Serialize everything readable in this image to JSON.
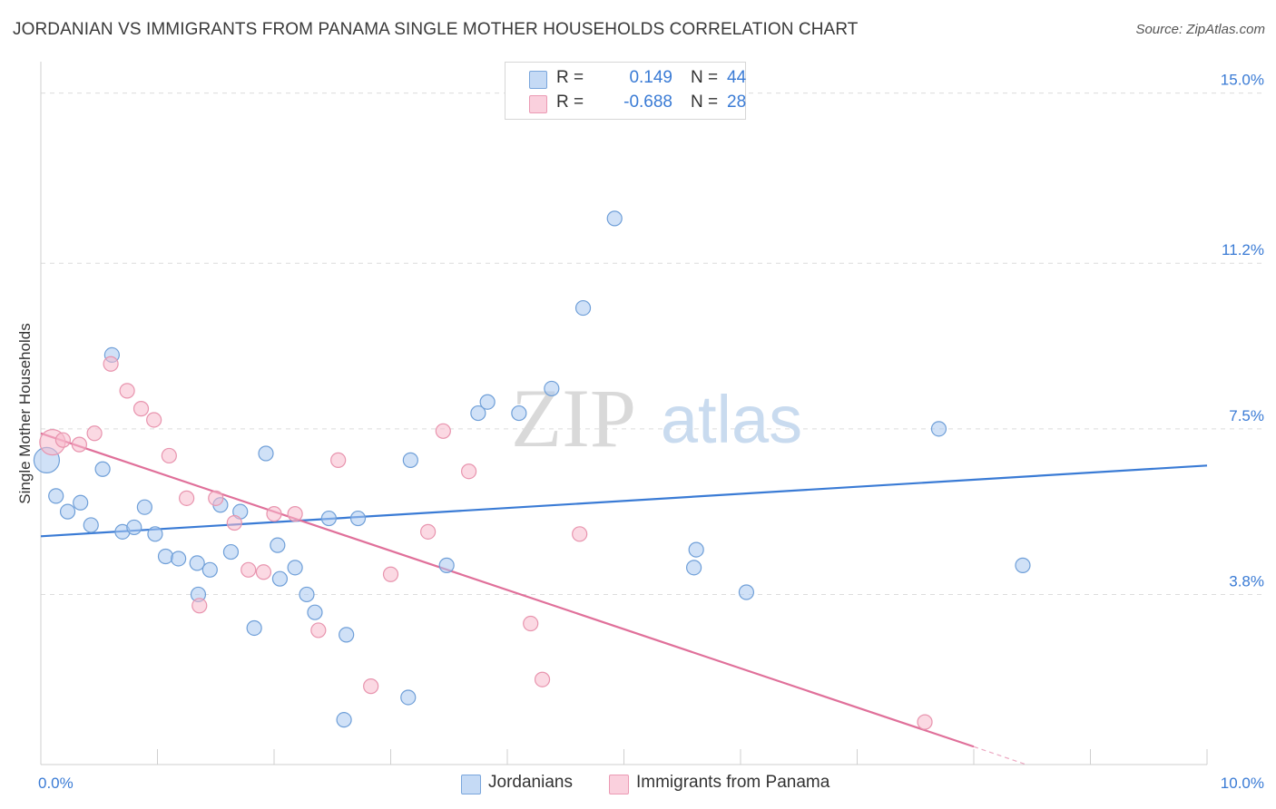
{
  "title": "JORDANIAN VS IMMIGRANTS FROM PANAMA SINGLE MOTHER HOUSEHOLDS CORRELATION CHART",
  "source": "Source: ZipAtlas.com",
  "watermark": {
    "zip": "ZIP",
    "atlas": "atlas"
  },
  "legend": {
    "rows": [
      {
        "r_label": "R =",
        "r_value": "0.149",
        "n_label": "N =",
        "n_value": "44",
        "color": "#a9c8f0"
      },
      {
        "r_label": "R =",
        "r_value": "-0.688",
        "n_label": "N =",
        "n_value": "28",
        "color": "#f7b9cc"
      }
    ]
  },
  "bottom_legend": [
    {
      "label": "Jordanians",
      "color": "#a9c8f0"
    },
    {
      "label": "Immigrants from Panama",
      "color": "#f7b9cc"
    }
  ],
  "chart_data": {
    "type": "scatter",
    "title": "JORDANIAN VS IMMIGRANTS FROM PANAMA SINGLE MOTHER HOUSEHOLDS CORRELATION CHART",
    "xlabel": "",
    "ylabel": "Single Mother Households",
    "xlim": [
      0,
      10
    ],
    "ylim": [
      0,
      15.5
    ],
    "x_tick_labels": [
      {
        "value": 0,
        "label": "0.0%"
      },
      {
        "value": 10,
        "label": "10.0%"
      }
    ],
    "y_tick_labels": [
      {
        "value": 3.8,
        "label": "3.8%"
      },
      {
        "value": 7.5,
        "label": "7.5%"
      },
      {
        "value": 11.2,
        "label": "11.2%"
      },
      {
        "value": 15.0,
        "label": "15.0%"
      }
    ],
    "series": [
      {
        "name": "Jordanians",
        "color": "#a9c8f0",
        "stroke": "#6f9fd8",
        "line_color": "#3a7bd5",
        "trend": {
          "x0": 0,
          "y0": 5.1,
          "x1": 10,
          "y1": 6.68
        },
        "points": [
          {
            "x": 0.05,
            "y": 6.8,
            "big": true
          },
          {
            "x": 0.13,
            "y": 6.0
          },
          {
            "x": 0.23,
            "y": 5.65
          },
          {
            "x": 0.34,
            "y": 5.85
          },
          {
            "x": 0.43,
            "y": 5.35
          },
          {
            "x": 0.53,
            "y": 6.6
          },
          {
            "x": 0.61,
            "y": 9.15
          },
          {
            "x": 0.7,
            "y": 5.2
          },
          {
            "x": 0.8,
            "y": 5.3
          },
          {
            "x": 0.89,
            "y": 5.75
          },
          {
            "x": 0.98,
            "y": 5.15
          },
          {
            "x": 1.07,
            "y": 4.65
          },
          {
            "x": 1.18,
            "y": 4.6
          },
          {
            "x": 1.35,
            "y": 3.8
          },
          {
            "x": 1.34,
            "y": 4.5
          },
          {
            "x": 1.45,
            "y": 4.35
          },
          {
            "x": 1.54,
            "y": 5.8
          },
          {
            "x": 1.63,
            "y": 4.75
          },
          {
            "x": 1.71,
            "y": 5.65
          },
          {
            "x": 1.83,
            "y": 3.05
          },
          {
            "x": 1.93,
            "y": 6.95
          },
          {
            "x": 2.03,
            "y": 4.9
          },
          {
            "x": 2.05,
            "y": 4.15
          },
          {
            "x": 2.18,
            "y": 4.4
          },
          {
            "x": 2.28,
            "y": 3.8
          },
          {
            "x": 2.35,
            "y": 3.4
          },
          {
            "x": 2.47,
            "y": 5.5
          },
          {
            "x": 2.6,
            "y": 1.0
          },
          {
            "x": 2.62,
            "y": 2.9
          },
          {
            "x": 2.72,
            "y": 5.5
          },
          {
            "x": 3.15,
            "y": 1.5
          },
          {
            "x": 3.17,
            "y": 6.8
          },
          {
            "x": 3.48,
            "y": 4.45
          },
          {
            "x": 3.75,
            "y": 7.85
          },
          {
            "x": 3.83,
            "y": 8.1
          },
          {
            "x": 4.1,
            "y": 7.85
          },
          {
            "x": 4.38,
            "y": 8.4
          },
          {
            "x": 4.65,
            "y": 10.2
          },
          {
            "x": 4.92,
            "y": 12.2
          },
          {
            "x": 5.6,
            "y": 4.4
          },
          {
            "x": 5.62,
            "y": 4.8
          },
          {
            "x": 6.05,
            "y": 3.85
          },
          {
            "x": 7.7,
            "y": 7.5
          },
          {
            "x": 8.42,
            "y": 4.45
          }
        ]
      },
      {
        "name": "Immigrants from Panama",
        "color": "#f7b9cc",
        "stroke": "#e894ae",
        "line_color": "#e0709a",
        "trend": {
          "x0": 0,
          "y0": 7.4,
          "x1": 8.0,
          "y1": 0.4
        },
        "trend_dash": {
          "x0": 8.0,
          "y0": 0.4,
          "x1": 8.45,
          "y1": 0.0
        },
        "points": [
          {
            "x": 0.1,
            "y": 7.2,
            "big": true
          },
          {
            "x": 0.19,
            "y": 7.25
          },
          {
            "x": 0.33,
            "y": 7.15
          },
          {
            "x": 0.46,
            "y": 7.4
          },
          {
            "x": 0.6,
            "y": 8.95
          },
          {
            "x": 0.74,
            "y": 8.35
          },
          {
            "x": 0.86,
            "y": 7.95
          },
          {
            "x": 0.97,
            "y": 7.7
          },
          {
            "x": 1.1,
            "y": 6.9
          },
          {
            "x": 1.25,
            "y": 5.95
          },
          {
            "x": 1.36,
            "y": 3.55
          },
          {
            "x": 1.5,
            "y": 5.95
          },
          {
            "x": 1.66,
            "y": 5.4
          },
          {
            "x": 1.78,
            "y": 4.35
          },
          {
            "x": 1.91,
            "y": 4.3
          },
          {
            "x": 2.0,
            "y": 5.6
          },
          {
            "x": 2.18,
            "y": 5.6
          },
          {
            "x": 2.38,
            "y": 3.0
          },
          {
            "x": 2.55,
            "y": 6.8
          },
          {
            "x": 2.83,
            "y": 1.75
          },
          {
            "x": 3.0,
            "y": 4.25
          },
          {
            "x": 3.32,
            "y": 5.2
          },
          {
            "x": 3.45,
            "y": 7.45
          },
          {
            "x": 3.67,
            "y": 6.55
          },
          {
            "x": 4.2,
            "y": 3.15
          },
          {
            "x": 4.3,
            "y": 1.9
          },
          {
            "x": 4.62,
            "y": 5.15
          },
          {
            "x": 7.58,
            "y": 0.95
          }
        ]
      }
    ]
  }
}
